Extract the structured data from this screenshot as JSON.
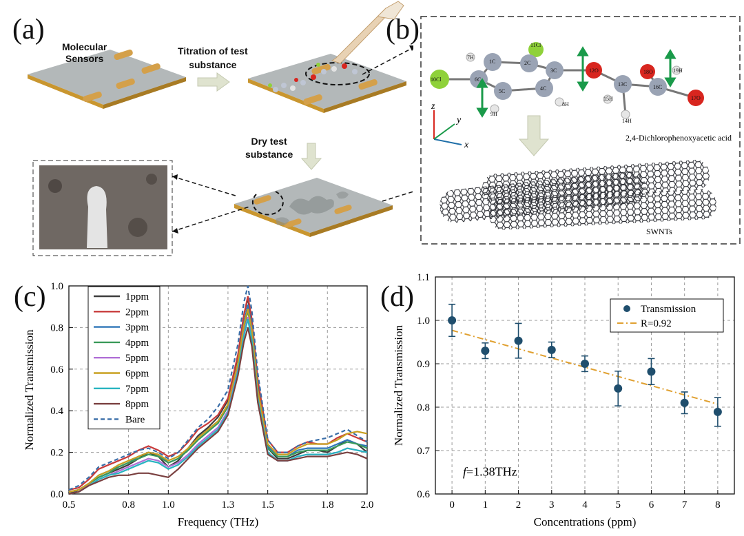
{
  "panels": {
    "a": "(a)",
    "b": "(b)",
    "c": "(c)",
    "d": "(d)"
  },
  "schematic": {
    "molecular_sensors": "Molecular\nSensors",
    "titration": "Titration of test\nsubstance",
    "dry": "Dry test\nsubstance"
  },
  "molecule": {
    "name": "2,4-Dichlorophenoxyacetic acid",
    "atoms": [
      "1C",
      "2C",
      "3C",
      "4C",
      "5C",
      "6C",
      "7H",
      "8H",
      "9H",
      "10Cl",
      "11Cl",
      "12O",
      "13C",
      "14H",
      "15H",
      "16C",
      "17O",
      "18O",
      "19H"
    ],
    "axes": [
      "z",
      "y",
      "x"
    ],
    "swnts_label": "SWNTs"
  },
  "colors": {
    "sensor_bar": "#d4a04a",
    "substrate_top": "#b3b8b9",
    "substrate_side": "#c9962f",
    "arrow_green": "#1a9a4a",
    "atom_carbon": "#9aa3b4",
    "atom_cl": "#8fd13a",
    "atom_o": "#d8261f",
    "fit_line": "#e0a030",
    "point": "#1f4e6d"
  },
  "chart_data": [
    {
      "type": "line",
      "panel": "(c)",
      "xlabel": "Frequency (THz)",
      "ylabel": "Normalized Transmission",
      "xlim": [
        0.5,
        2.0
      ],
      "ylim": [
        0.0,
        1.0
      ],
      "xticks": [
        "0.5",
        "0.8",
        "1.0",
        "1.3",
        "1.5",
        "1.8",
        "2.0"
      ],
      "yticks": [
        "0.0",
        "0.2",
        "0.4",
        "0.6",
        "0.8",
        "1.0"
      ],
      "grid": true,
      "legend_position": "top-left",
      "x": [
        0.5,
        0.55,
        0.6,
        0.65,
        0.7,
        0.75,
        0.8,
        0.85,
        0.9,
        0.95,
        1.0,
        1.05,
        1.1,
        1.15,
        1.2,
        1.25,
        1.3,
        1.35,
        1.38,
        1.4,
        1.42,
        1.45,
        1.5,
        1.55,
        1.6,
        1.65,
        1.7,
        1.75,
        1.8,
        1.85,
        1.9,
        1.95,
        2.0
      ],
      "series": [
        {
          "name": "1ppm",
          "color": "#3d3d3d",
          "values": [
            0.0,
            0.02,
            0.05,
            0.08,
            0.1,
            0.12,
            0.14,
            0.17,
            0.2,
            0.18,
            0.13,
            0.16,
            0.22,
            0.28,
            0.32,
            0.37,
            0.45,
            0.66,
            0.86,
            0.94,
            0.82,
            0.52,
            0.22,
            0.17,
            0.17,
            0.19,
            0.21,
            0.21,
            0.2,
            0.23,
            0.26,
            0.24,
            0.2
          ]
        },
        {
          "name": "2ppm",
          "color": "#c83b3b",
          "values": [
            0.02,
            0.03,
            0.07,
            0.12,
            0.14,
            0.16,
            0.18,
            0.21,
            0.23,
            0.21,
            0.18,
            0.2,
            0.25,
            0.31,
            0.34,
            0.38,
            0.46,
            0.67,
            0.86,
            0.95,
            0.84,
            0.55,
            0.26,
            0.2,
            0.2,
            0.23,
            0.25,
            0.24,
            0.24,
            0.27,
            0.29,
            0.27,
            0.25
          ]
        },
        {
          "name": "3ppm",
          "color": "#2e76b8",
          "values": [
            0.01,
            0.02,
            0.05,
            0.09,
            0.11,
            0.13,
            0.15,
            0.18,
            0.2,
            0.19,
            0.15,
            0.17,
            0.22,
            0.27,
            0.31,
            0.35,
            0.43,
            0.63,
            0.82,
            0.91,
            0.8,
            0.5,
            0.23,
            0.18,
            0.18,
            0.21,
            0.22,
            0.22,
            0.22,
            0.24,
            0.26,
            0.24,
            0.23
          ]
        },
        {
          "name": "4ppm",
          "color": "#3a9a5a",
          "values": [
            0.01,
            0.02,
            0.05,
            0.08,
            0.1,
            0.13,
            0.15,
            0.17,
            0.19,
            0.18,
            0.15,
            0.17,
            0.21,
            0.26,
            0.3,
            0.34,
            0.42,
            0.62,
            0.8,
            0.88,
            0.78,
            0.49,
            0.22,
            0.18,
            0.18,
            0.2,
            0.21,
            0.21,
            0.21,
            0.23,
            0.25,
            0.24,
            0.22
          ]
        },
        {
          "name": "5ppm",
          "color": "#b070d6",
          "values": [
            0.01,
            0.02,
            0.04,
            0.07,
            0.09,
            0.11,
            0.13,
            0.15,
            0.17,
            0.16,
            0.13,
            0.15,
            0.19,
            0.24,
            0.28,
            0.32,
            0.4,
            0.6,
            0.77,
            0.85,
            0.75,
            0.47,
            0.2,
            0.16,
            0.16,
            0.18,
            0.19,
            0.19,
            0.19,
            0.2,
            0.22,
            0.21,
            0.2
          ]
        },
        {
          "name": "6ppm",
          "color": "#c8a020",
          "values": [
            0.01,
            0.02,
            0.05,
            0.09,
            0.11,
            0.14,
            0.16,
            0.18,
            0.2,
            0.19,
            0.16,
            0.18,
            0.22,
            0.27,
            0.31,
            0.35,
            0.43,
            0.63,
            0.81,
            0.89,
            0.79,
            0.5,
            0.24,
            0.19,
            0.19,
            0.22,
            0.24,
            0.24,
            0.24,
            0.26,
            0.29,
            0.3,
            0.29
          ]
        },
        {
          "name": "7ppm",
          "color": "#28b4c0",
          "values": [
            0.0,
            0.01,
            0.04,
            0.07,
            0.09,
            0.1,
            0.12,
            0.14,
            0.16,
            0.15,
            0.12,
            0.14,
            0.18,
            0.23,
            0.27,
            0.31,
            0.39,
            0.59,
            0.76,
            0.84,
            0.74,
            0.46,
            0.2,
            0.16,
            0.16,
            0.18,
            0.19,
            0.19,
            0.19,
            0.2,
            0.22,
            0.21,
            0.2
          ]
        },
        {
          "name": "8ppm",
          "color": "#7a4040",
          "values": [
            0.0,
            0.01,
            0.04,
            0.06,
            0.08,
            0.09,
            0.09,
            0.1,
            0.1,
            0.09,
            0.08,
            0.12,
            0.17,
            0.22,
            0.26,
            0.3,
            0.38,
            0.57,
            0.73,
            0.8,
            0.71,
            0.44,
            0.19,
            0.16,
            0.16,
            0.17,
            0.18,
            0.18,
            0.18,
            0.19,
            0.2,
            0.19,
            0.17
          ]
        },
        {
          "name": "Bare",
          "color": "#3a6ea8",
          "dashed": true,
          "values": [
            0.02,
            0.04,
            0.08,
            0.13,
            0.15,
            0.17,
            0.19,
            0.21,
            0.22,
            0.2,
            0.17,
            0.2,
            0.26,
            0.32,
            0.36,
            0.42,
            0.5,
            0.72,
            0.92,
            1.0,
            0.88,
            0.58,
            0.26,
            0.2,
            0.2,
            0.23,
            0.25,
            0.26,
            0.27,
            0.29,
            0.31,
            0.28,
            0.25
          ]
        }
      ]
    },
    {
      "type": "scatter",
      "panel": "(d)",
      "xlabel": "Concentrations (ppm)",
      "ylabel": "Normalized Transmission",
      "xlim": [
        -0.5,
        8.5
      ],
      "ylim": [
        0.6,
        1.1
      ],
      "xticks": [
        "0",
        "1",
        "2",
        "3",
        "4",
        "5",
        "6",
        "7",
        "8"
      ],
      "yticks": [
        "0.6",
        "0.7",
        "0.8",
        "0.9",
        "1.0",
        "1.1"
      ],
      "grid": true,
      "legend_position": "top-right",
      "annotation_f": "f",
      "annotation_rest": "=1.38THz",
      "points": {
        "name": "Transmission",
        "x": [
          0,
          1,
          2,
          3,
          4,
          5,
          6,
          7,
          8
        ],
        "y": [
          1.0,
          0.93,
          0.953,
          0.932,
          0.9,
          0.843,
          0.882,
          0.81,
          0.789
        ],
        "err": [
          0.037,
          0.018,
          0.04,
          0.018,
          0.018,
          0.04,
          0.03,
          0.025,
          0.033
        ]
      },
      "fit": {
        "name": "R=0.92",
        "x": [
          0,
          8
        ],
        "y": [
          0.977,
          0.807
        ]
      }
    }
  ]
}
